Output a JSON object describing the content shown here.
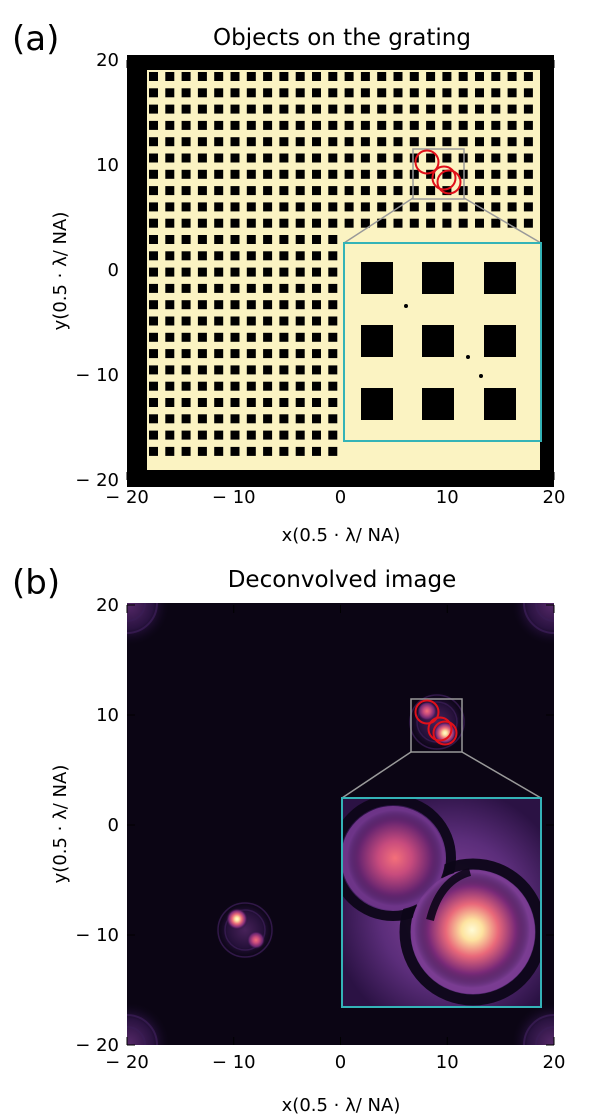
{
  "panels": [
    {
      "letter": "(a)",
      "title": "Objects on the grating",
      "xlabel": "x(0.5 · λ/ NA)",
      "ylabel": "y(0.5 · λ/ NA)",
      "xticks": [
        "− 20",
        "− 10",
        "0",
        "10",
        "20"
      ],
      "yticks": [
        "20",
        "10",
        "0",
        "− 10",
        "− 20"
      ],
      "xrange": [
        -20,
        20
      ],
      "yrange": [
        -20,
        20
      ]
    },
    {
      "letter": "(b)",
      "title": "Deconvolved image",
      "xlabel": "x(0.5 · λ/ NA)",
      "ylabel": "y(0.5 · λ/ NA)",
      "xticks": [
        "− 20",
        "− 10",
        "0",
        "10",
        "20"
      ],
      "yticks": [
        "20",
        "10",
        "0",
        "− 10",
        "− 20"
      ],
      "xrange": [
        -20,
        20
      ],
      "yrange": [
        -20,
        20
      ]
    }
  ],
  "colors": {
    "grating_bg": "#fbf3c2",
    "grating_hole": "#000000",
    "frame": "#000000",
    "circle": "#e0101a",
    "zoom_box": "#999999",
    "inset_border": "#34b3b7",
    "image_bg": "#0b0514"
  }
}
